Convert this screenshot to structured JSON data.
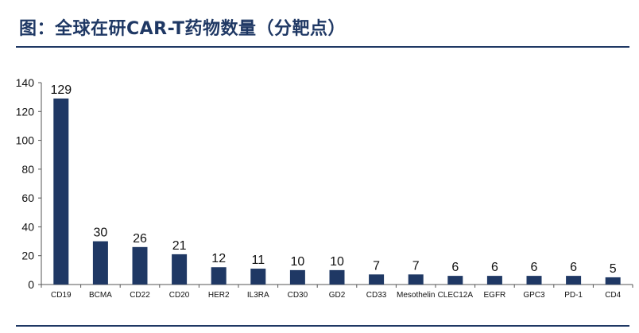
{
  "title": "图：全球在研CAR-T药物数量（分靶点）",
  "colors": {
    "bar": "#1f3864",
    "rule": "#1f3864",
    "title": "#1f3864"
  },
  "chart_data": {
    "type": "bar",
    "title": "图：全球在研CAR-T药物数量（分靶点）",
    "xlabel": "",
    "ylabel": "",
    "categories": [
      "CD19",
      "BCMA",
      "CD22",
      "CD20",
      "HER2",
      "IL3RA",
      "CD30",
      "GD2",
      "CD33",
      "Mesothelin",
      "CLEC12A",
      "EGFR",
      "GPC3",
      "PD-1",
      "CD4"
    ],
    "values": [
      129,
      30,
      26,
      21,
      12,
      11,
      10,
      10,
      7,
      7,
      6,
      6,
      6,
      6,
      5
    ],
    "ylim": [
      0,
      140
    ],
    "yticks": [
      0,
      20,
      40,
      60,
      80,
      100,
      120,
      140
    ],
    "grid": false,
    "data_labels": true
  }
}
